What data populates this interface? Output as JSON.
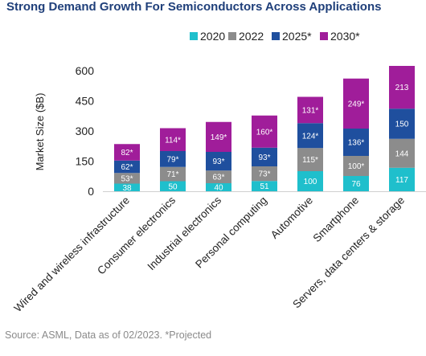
{
  "title": "Strong Demand Growth For Semiconductors Across Applications",
  "source": "Source: ASML, Data as of 02/2023. *Projected",
  "colors": {
    "2020": "#1fbfcc",
    "2022": "#8c8c8c",
    "2025*": "#1f4f9e",
    "2030*": "#a01d9a"
  },
  "chart_data": {
    "type": "bar",
    "stacked": true,
    "title": "Strong Demand Growth For Semiconductors Across Applications",
    "ylabel": "Market Size ($B)",
    "xlabel": "",
    "ylim": [
      0,
      600
    ],
    "yticks": [
      0,
      150,
      300,
      450,
      600
    ],
    "grid": false,
    "legend": "top",
    "categories": [
      "Wired and wireless infrastructure",
      "Consumer electronics",
      "Industrial electronics",
      "Personal computing",
      "Automotive",
      "Smartphone",
      "Servers, data centers & storage"
    ],
    "series": [
      {
        "name": "2020",
        "values": [
          38,
          50,
          40,
          51,
          100,
          76,
          117
        ],
        "labels": [
          "38",
          "50",
          "40",
          "51",
          "100",
          "76",
          "117"
        ]
      },
      {
        "name": "2022",
        "values": [
          53,
          71,
          63,
          73,
          115,
          100,
          144
        ],
        "labels": [
          "53*",
          "71*",
          "63*",
          "73*",
          "115*",
          "100*",
          "144"
        ]
      },
      {
        "name": "2025*",
        "values": [
          62,
          79,
          93,
          93,
          124,
          136,
          150
        ],
        "labels": [
          "62*",
          "79*",
          "93*",
          "93*",
          "124*",
          "136*",
          "150"
        ]
      },
      {
        "name": "2030*",
        "values": [
          82,
          114,
          149,
          160,
          131,
          249,
          213
        ],
        "labels": [
          "82*",
          "114*",
          "149*",
          "160*",
          "131*",
          "249*",
          "213"
        ]
      }
    ]
  }
}
